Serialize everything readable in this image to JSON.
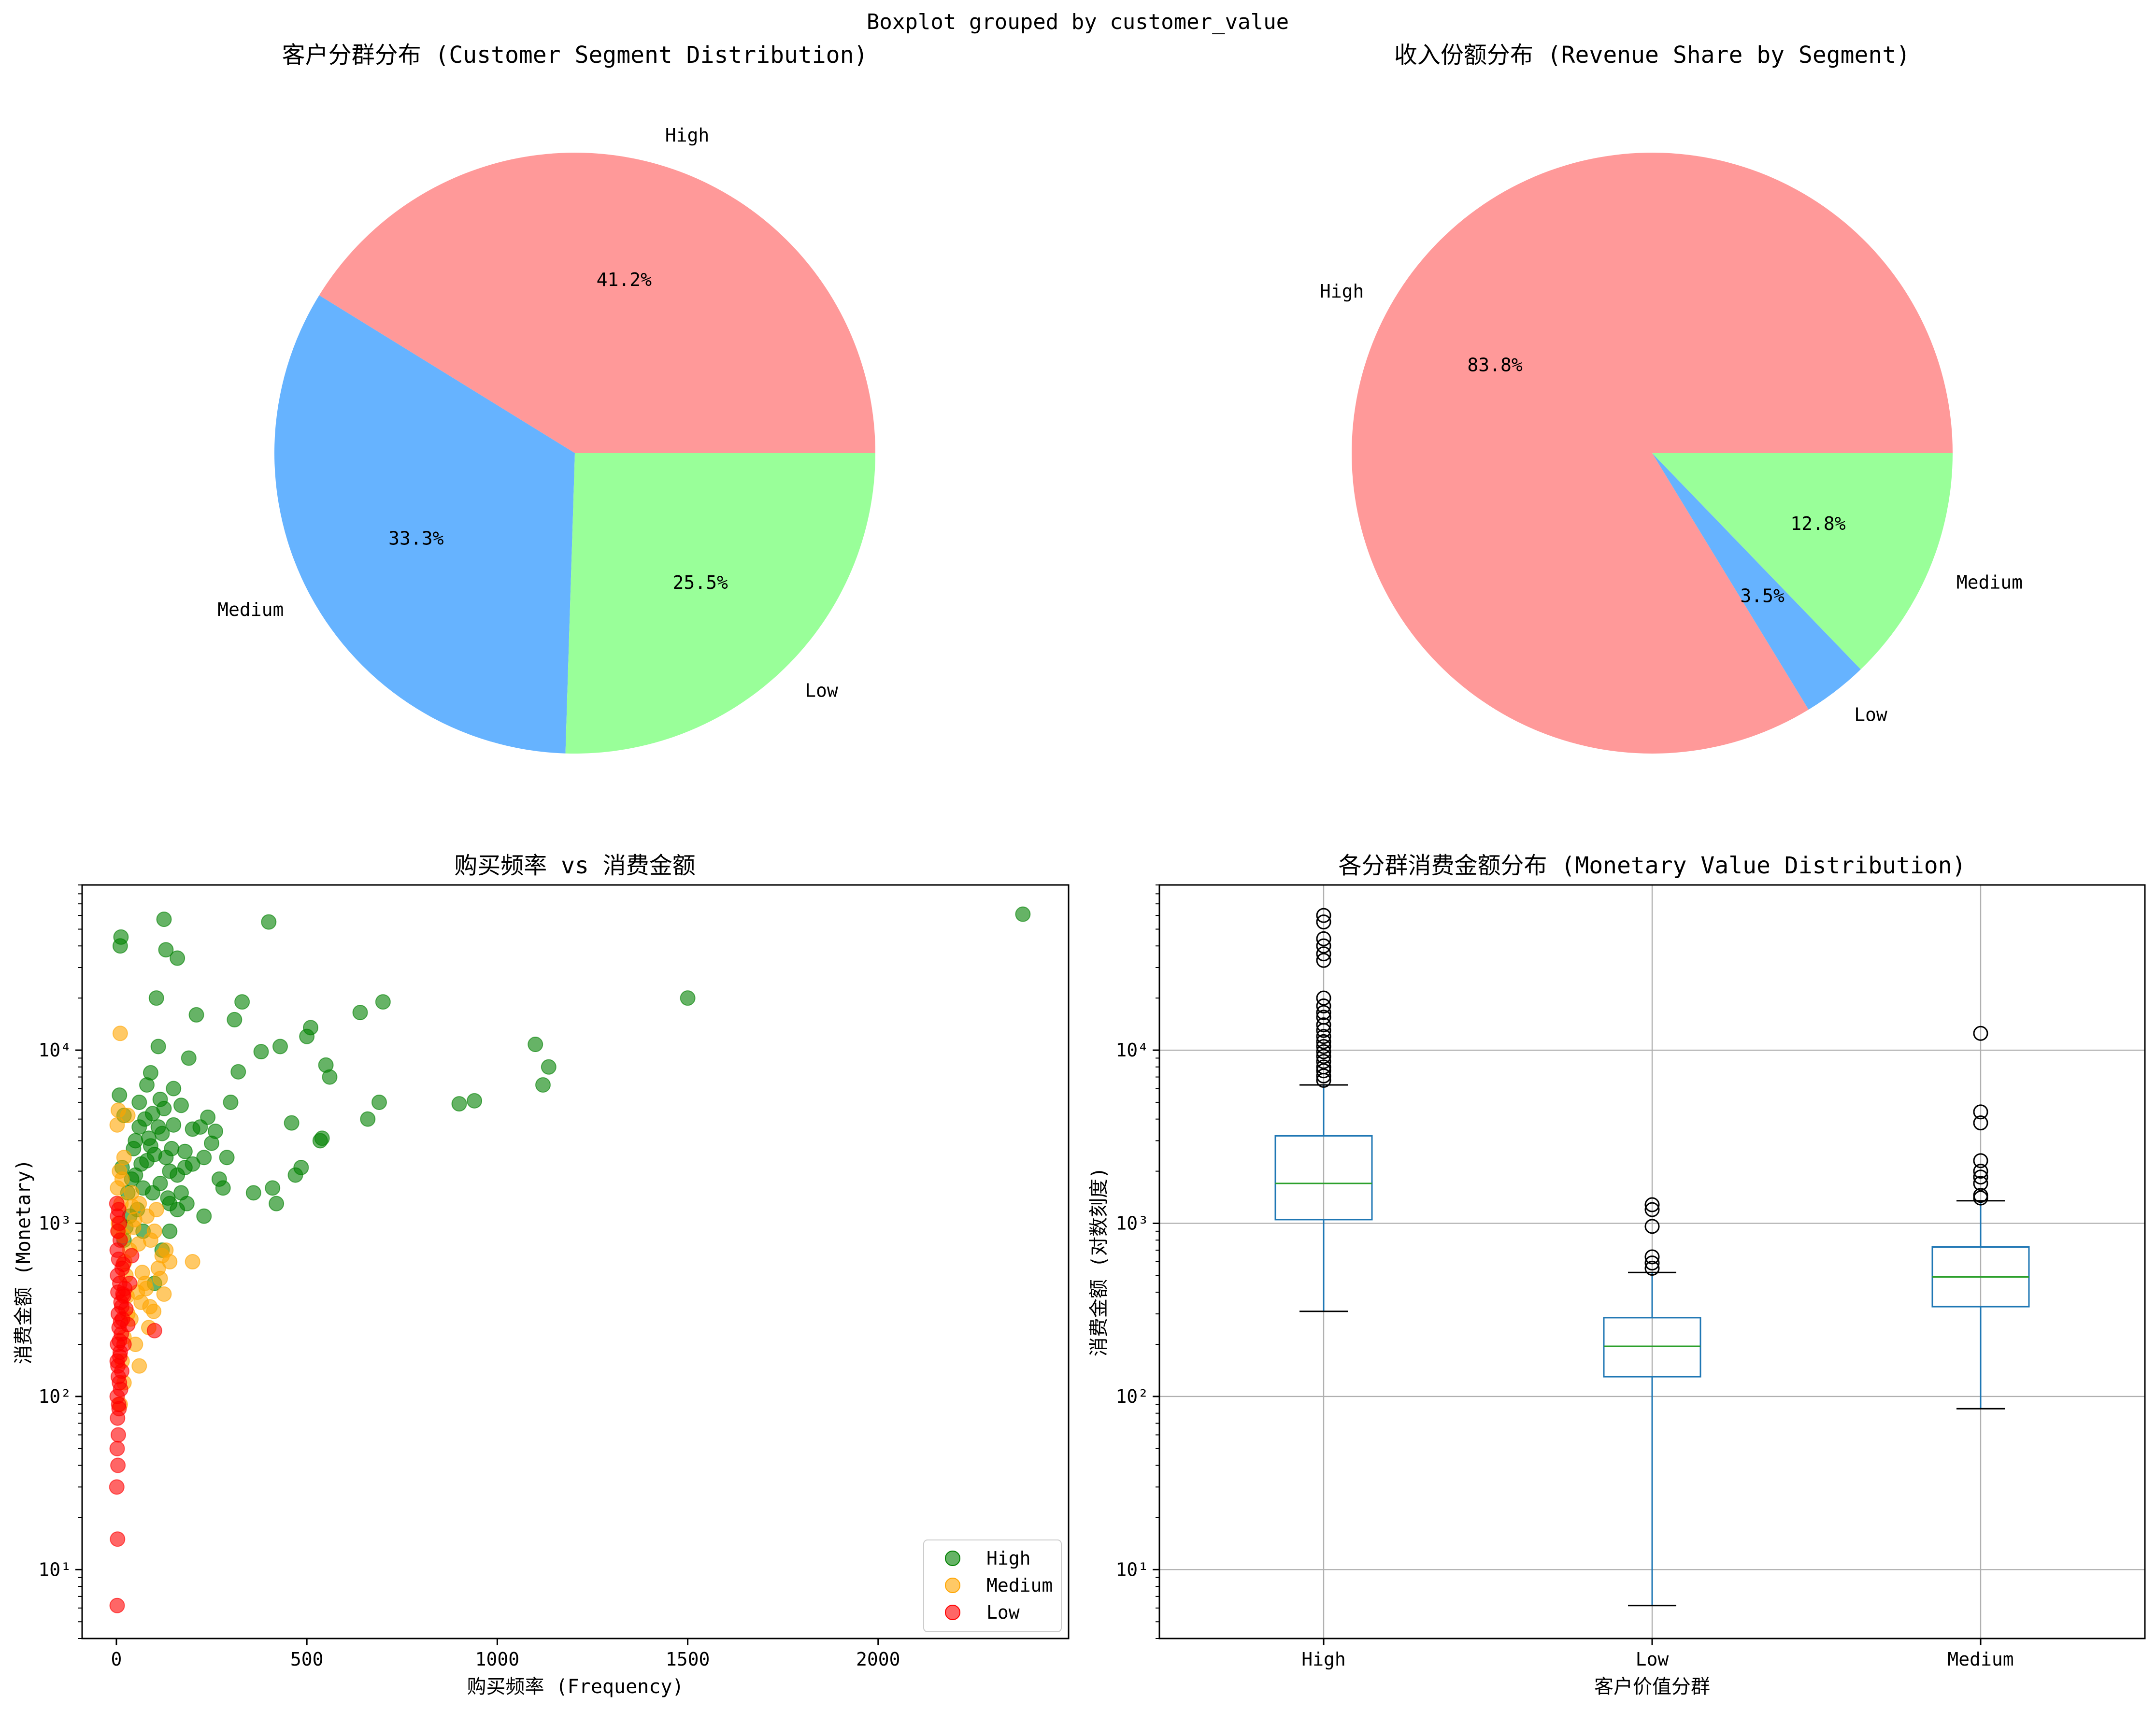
{
  "suptitle": "Boxplot grouped by customer_value",
  "chart_data": [
    {
      "type": "pie",
      "title": "客户分群分布 (Customer Segment Distribution)",
      "slices": [
        {
          "label": "High",
          "value": 41.2,
          "pct_text": "41.2%",
          "color": "#ff9999"
        },
        {
          "label": "Medium",
          "value": 33.3,
          "pct_text": "33.3%",
          "color": "#66b3ff"
        },
        {
          "label": "Low",
          "value": 25.5,
          "pct_text": "25.5%",
          "color": "#99ff99"
        }
      ]
    },
    {
      "type": "pie",
      "title": "收入份额分布 (Revenue Share by Segment)",
      "slices": [
        {
          "label": "High",
          "value": 83.8,
          "pct_text": "83.8%",
          "color": "#ff9999"
        },
        {
          "label": "Low",
          "value": 3.5,
          "pct_text": "3.5%",
          "color": "#66b3ff"
        },
        {
          "label": "Medium",
          "value": 12.8,
          "pct_text": "12.8%",
          "color": "#99ff99"
        }
      ]
    },
    {
      "type": "scatter",
      "title": "购买频率 vs 消费金额",
      "xlabel": "购买频率 (Frequency)",
      "ylabel": "消费金额 (Monetary)",
      "xlim": [
        -90,
        2500
      ],
      "ylim": [
        4,
        90000
      ],
      "yscale": "log",
      "xticks": [
        0,
        500,
        1000,
        1500,
        2000
      ],
      "yticks": [
        {
          "v": 10,
          "label": "10¹"
        },
        {
          "v": 100,
          "label": "10²"
        },
        {
          "v": 1000,
          "label": "10³"
        },
        {
          "v": 10000,
          "label": "10⁴"
        }
      ],
      "legend": "bottom-right",
      "series": [
        {
          "name": "High",
          "color": "#008000",
          "points": [
            [
              2380,
              61000
            ],
            [
              1500,
              20000
            ],
            [
              1135,
              8000
            ],
            [
              1120,
              6300
            ],
            [
              1100,
              10800
            ],
            [
              940,
              5100
            ],
            [
              900,
              4900
            ],
            [
              700,
              19000
            ],
            [
              690,
              5000
            ],
            [
              660,
              4000
            ],
            [
              640,
              16500
            ],
            [
              560,
              7000
            ],
            [
              550,
              8200
            ],
            [
              540,
              3100
            ],
            [
              535,
              3000
            ],
            [
              510,
              13500
            ],
            [
              500,
              12000
            ],
            [
              485,
              2100
            ],
            [
              470,
              1900
            ],
            [
              460,
              3800
            ],
            [
              430,
              10500
            ],
            [
              420,
              1300
            ],
            [
              410,
              1600
            ],
            [
              400,
              55000
            ],
            [
              380,
              9800
            ],
            [
              360,
              1500
            ],
            [
              330,
              19000
            ],
            [
              320,
              7500
            ],
            [
              310,
              15000
            ],
            [
              300,
              5000
            ],
            [
              290,
              2400
            ],
            [
              270,
              1800
            ],
            [
              250,
              2900
            ],
            [
              240,
              4100
            ],
            [
              230,
              1100
            ],
            [
              220,
              3600
            ],
            [
              210,
              16000
            ],
            [
              200,
              2200
            ],
            [
              190,
              9000
            ],
            [
              180,
              2600
            ],
            [
              170,
              4800
            ],
            [
              160,
              34000
            ],
            [
              150,
              6000
            ],
            [
              140,
              2000
            ],
            [
              135,
              1400
            ],
            [
              130,
              38000
            ],
            [
              125,
              57000
            ],
            [
              120,
              3300
            ],
            [
              115,
              1700
            ],
            [
              110,
              10500
            ],
            [
              105,
              20000
            ],
            [
              100,
              2500
            ],
            [
              95,
              1500
            ],
            [
              90,
              7400
            ],
            [
              85,
              3100
            ],
            [
              80,
              6300
            ],
            [
              75,
              4000
            ],
            [
              70,
              900
            ],
            [
              65,
              2200
            ],
            [
              60,
              5000
            ],
            [
              55,
              1200
            ],
            [
              50,
              3000
            ],
            [
              45,
              2700
            ],
            [
              40,
              1800
            ],
            [
              35,
              1100
            ],
            [
              30,
              1500
            ],
            [
              25,
              950
            ],
            [
              20,
              800
            ],
            [
              15,
              2100
            ],
            [
              10,
              40000
            ],
            [
              12,
              45000
            ],
            [
              8,
              5500
            ],
            [
              20,
              4200
            ],
            [
              140,
              1300
            ],
            [
              160,
              1900
            ],
            [
              90,
              2800
            ],
            [
              110,
              3600
            ],
            [
              130,
              2400
            ],
            [
              150,
              3700
            ],
            [
              170,
              1500
            ],
            [
              200,
              3500
            ],
            [
              230,
              2400
            ],
            [
              260,
              3400
            ],
            [
              280,
              1600
            ],
            [
              120,
              700
            ],
            [
              100,
              450
            ],
            [
              140,
              900
            ],
            [
              160,
              1200
            ],
            [
              180,
              2100
            ],
            [
              70,
              1600
            ],
            [
              80,
              2300
            ],
            [
              60,
              3600
            ],
            [
              50,
              1900
            ],
            [
              95,
              4300
            ],
            [
              115,
              5200
            ],
            [
              125,
              4600
            ],
            [
              145,
              2700
            ],
            [
              185,
              1300
            ]
          ]
        },
        {
          "name": "Medium",
          "color": "#ffa500",
          "points": [
            [
              10,
              12500
            ],
            [
              5,
              4500
            ],
            [
              30,
              4200
            ],
            [
              2,
              3700
            ],
            [
              20,
              2400
            ],
            [
              15,
              1800
            ],
            [
              40,
              1500
            ],
            [
              60,
              1300
            ],
            [
              80,
              1100
            ],
            [
              100,
              900
            ],
            [
              120,
              650
            ],
            [
              140,
              600
            ],
            [
              200,
              600
            ],
            [
              30,
              300
            ],
            [
              50,
              200
            ],
            [
              60,
              150
            ],
            [
              20,
              120
            ],
            [
              10,
              90
            ],
            [
              25,
              500
            ],
            [
              35,
              700
            ],
            [
              45,
              950
            ],
            [
              55,
              400
            ],
            [
              65,
              350
            ],
            [
              75,
              450
            ],
            [
              85,
              250
            ],
            [
              90,
              800
            ],
            [
              110,
              550
            ],
            [
              130,
              700
            ],
            [
              5,
              1000
            ],
            [
              8,
              2000
            ],
            [
              12,
              1300
            ],
            [
              18,
              850
            ],
            [
              22,
              600
            ],
            [
              28,
              380
            ],
            [
              38,
              280
            ],
            [
              42,
              1250
            ],
            [
              48,
              1050
            ],
            [
              58,
              760
            ],
            [
              68,
              520
            ],
            [
              78,
              420
            ],
            [
              88,
              330
            ],
            [
              98,
              310
            ],
            [
              105,
              1200
            ],
            [
              115,
              480
            ],
            [
              125,
              390
            ],
            [
              15,
              160
            ],
            [
              20,
              220
            ],
            [
              3,
              1600
            ],
            [
              6,
              900
            ]
          ]
        },
        {
          "name": "Low",
          "color": "#ff0000",
          "points": [
            [
              2,
              6.2
            ],
            [
              3,
              15
            ],
            [
              1,
              30
            ],
            [
              4,
              40
            ],
            [
              2,
              50
            ],
            [
              5,
              60
            ],
            [
              3,
              75
            ],
            [
              6,
              90
            ],
            [
              2,
              100
            ],
            [
              8,
              120
            ],
            [
              4,
              150
            ],
            [
              10,
              180
            ],
            [
              3,
              200
            ],
            [
              7,
              250
            ],
            [
              5,
              300
            ],
            [
              12,
              350
            ],
            [
              4,
              400
            ],
            [
              9,
              450
            ],
            [
              3,
              500
            ],
            [
              15,
              550
            ],
            [
              6,
              620
            ],
            [
              2,
              700
            ],
            [
              10,
              800
            ],
            [
              4,
              900
            ],
            [
              8,
              1000
            ],
            [
              3,
              1100
            ],
            [
              6,
              1200
            ],
            [
              1,
              1300
            ],
            [
              100,
              240
            ],
            [
              20,
              200
            ],
            [
              30,
              260
            ],
            [
              25,
              320
            ],
            [
              35,
              450
            ],
            [
              40,
              650
            ],
            [
              18,
              580
            ],
            [
              14,
              140
            ],
            [
              11,
              110
            ],
            [
              7,
              85
            ],
            [
              9,
              170
            ],
            [
              13,
              230
            ],
            [
              16,
              280
            ],
            [
              19,
              380
            ],
            [
              22,
              420
            ],
            [
              5,
              130
            ],
            [
              2,
              160
            ],
            [
              8,
              210
            ],
            [
              11,
              270
            ],
            [
              14,
              330
            ],
            [
              17,
              390
            ]
          ]
        }
      ]
    },
    {
      "type": "box",
      "title": "各分群消费金额分布 (Monetary Value Distribution)",
      "xlabel": "客户价值分群",
      "ylabel": "消费金额 (对数刻度)",
      "yscale": "log",
      "ylim": [
        4,
        90000
      ],
      "grid": true,
      "yticks": [
        {
          "v": 10,
          "label": "10¹"
        },
        {
          "v": 100,
          "label": "10²"
        },
        {
          "v": 1000,
          "label": "10³"
        },
        {
          "v": 10000,
          "label": "10⁴"
        }
      ],
      "categories": [
        "High",
        "Low",
        "Medium"
      ],
      "boxes": [
        {
          "category": "High",
          "whisker_low": 310,
          "q1": 1050,
          "median": 1700,
          "q3": 3200,
          "whisker_high": 6300,
          "outliers": [
            6700,
            7100,
            7600,
            8000,
            8600,
            9200,
            9800,
            10500,
            11200,
            12000,
            13000,
            14000,
            15500,
            16500,
            18000,
            20000,
            33000,
            36000,
            40000,
            44000,
            55000,
            60000
          ]
        },
        {
          "category": "Low",
          "whisker_low": 6.2,
          "q1": 130,
          "median": 195,
          "q3": 285,
          "whisker_high": 520,
          "outliers": [
            550,
            590,
            640,
            960,
            1200,
            1280
          ]
        },
        {
          "category": "Medium",
          "whisker_low": 85,
          "q1": 330,
          "median": 490,
          "q3": 730,
          "whisker_high": 1350,
          "outliers": [
            1400,
            1450,
            1700,
            1850,
            2000,
            2300,
            3800,
            4400,
            12500
          ]
        }
      ]
    }
  ]
}
